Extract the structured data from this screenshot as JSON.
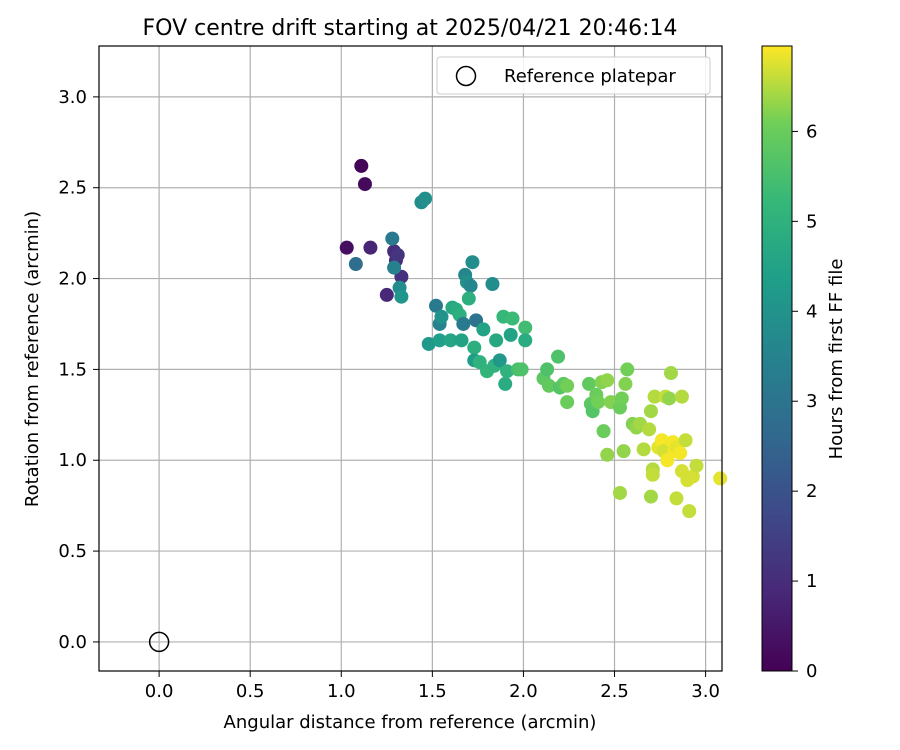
{
  "chart_data": {
    "type": "scatter",
    "title": "FOV centre drift starting at 2025/04/21 20:46:14",
    "xlabel": "Angular distance from reference (arcmin)",
    "ylabel": "Rotation from reference (arcmin)",
    "xlim": [
      -0.33,
      3.09
    ],
    "ylim": [
      -0.16,
      3.28
    ],
    "xticks": [
      "0.0",
      "0.5",
      "1.0",
      "1.5",
      "2.0",
      "2.5",
      "3.0"
    ],
    "yticks": [
      "0.0",
      "0.5",
      "1.0",
      "1.5",
      "2.0",
      "2.5",
      "3.0"
    ],
    "grid": true,
    "legend_position": "top-right",
    "colormap": "viridis",
    "colorbar": {
      "label": "Hours from first FF file",
      "range": [
        0,
        6.95
      ],
      "ticks": [
        "0",
        "1",
        "2",
        "3",
        "4",
        "5",
        "6"
      ]
    },
    "reference": {
      "label": "Reference platepar",
      "x": 0.0,
      "y": 0.0
    },
    "points": [
      [
        1.11,
        2.62,
        0.1
      ],
      [
        1.13,
        2.52,
        0.2
      ],
      [
        1.03,
        2.17,
        0.3
      ],
      [
        1.16,
        2.17,
        0.8
      ],
      [
        1.29,
        2.15,
        1.0
      ],
      [
        1.3,
        2.1,
        1.0
      ],
      [
        1.33,
        2.01,
        1.1
      ],
      [
        1.25,
        1.91,
        0.9
      ],
      [
        1.31,
        2.13,
        1.2
      ],
      [
        1.08,
        2.08,
        2.8
      ],
      [
        1.28,
        2.22,
        3.2
      ],
      [
        1.29,
        2.06,
        3.4
      ],
      [
        1.32,
        1.95,
        3.8
      ],
      [
        1.33,
        1.9,
        4.1
      ],
      [
        1.44,
        2.42,
        3.8
      ],
      [
        1.46,
        2.44,
        3.9
      ],
      [
        1.52,
        1.85,
        3.2
      ],
      [
        1.54,
        1.75,
        3.5
      ],
      [
        1.55,
        1.79,
        4.0
      ],
      [
        1.48,
        1.64,
        4.2
      ],
      [
        1.54,
        1.66,
        4.4
      ],
      [
        1.6,
        1.66,
        4.6
      ],
      [
        1.61,
        1.84,
        4.7
      ],
      [
        1.63,
        1.83,
        4.8
      ],
      [
        1.65,
        1.8,
        4.9
      ],
      [
        1.66,
        1.66,
        4.5
      ],
      [
        1.67,
        1.75,
        3.2
      ],
      [
        1.68,
        2.02,
        3.6
      ],
      [
        1.69,
        1.98,
        3.9
      ],
      [
        1.71,
        1.96,
        3.6
      ],
      [
        1.7,
        1.89,
        4.9
      ],
      [
        1.72,
        2.09,
        3.8
      ],
      [
        1.74,
        1.77,
        3.0
      ],
      [
        1.73,
        1.62,
        4.9
      ],
      [
        1.73,
        1.55,
        4.3
      ],
      [
        1.76,
        1.54,
        5.0
      ],
      [
        1.78,
        1.72,
        4.5
      ],
      [
        1.8,
        1.49,
        5.1
      ],
      [
        1.83,
        1.97,
        3.8
      ],
      [
        1.84,
        1.52,
        5.0
      ],
      [
        1.85,
        1.66,
        4.7
      ],
      [
        1.87,
        1.55,
        4.2
      ],
      [
        1.89,
        1.79,
        5.2
      ],
      [
        1.9,
        1.42,
        4.8
      ],
      [
        1.91,
        1.49,
        5.0
      ],
      [
        1.93,
        1.69,
        4.5
      ],
      [
        1.94,
        1.78,
        5.3
      ],
      [
        1.97,
        1.5,
        5.5
      ],
      [
        1.99,
        1.5,
        5.6
      ],
      [
        2.01,
        1.73,
        5.4
      ],
      [
        2.01,
        1.66,
        4.8
      ],
      [
        2.11,
        1.45,
        5.8
      ],
      [
        2.13,
        1.5,
        5.6
      ],
      [
        2.14,
        1.41,
        5.9
      ],
      [
        2.19,
        1.57,
        5.6
      ],
      [
        2.2,
        1.4,
        5.7
      ],
      [
        2.22,
        1.42,
        5.8
      ],
      [
        2.24,
        1.32,
        6.0
      ],
      [
        2.24,
        1.41,
        6.1
      ],
      [
        2.36,
        1.42,
        5.9
      ],
      [
        2.37,
        1.31,
        5.8
      ],
      [
        2.38,
        1.27,
        5.7
      ],
      [
        2.4,
        1.36,
        6.0
      ],
      [
        2.41,
        1.32,
        6.1
      ],
      [
        2.43,
        1.43,
        6.2
      ],
      [
        2.44,
        1.16,
        6.0
      ],
      [
        2.46,
        1.44,
        6.3
      ],
      [
        2.46,
        1.03,
        6.3
      ],
      [
        2.48,
        1.32,
        6.2
      ],
      [
        2.53,
        1.29,
        6.0
      ],
      [
        2.54,
        1.34,
        6.1
      ],
      [
        2.55,
        1.05,
        6.3
      ],
      [
        2.53,
        0.82,
        6.4
      ],
      [
        2.56,
        1.42,
        6.2
      ],
      [
        2.57,
        1.5,
        6.1
      ],
      [
        2.6,
        1.2,
        6.2
      ],
      [
        2.62,
        1.18,
        6.3
      ],
      [
        2.64,
        1.2,
        6.4
      ],
      [
        2.66,
        1.06,
        6.5
      ],
      [
        2.69,
        1.17,
        6.5
      ],
      [
        2.7,
        1.27,
        6.4
      ],
      [
        2.7,
        0.8,
        6.4
      ],
      [
        2.71,
        0.95,
        6.5
      ],
      [
        2.71,
        0.92,
        6.6
      ],
      [
        2.72,
        1.35,
        6.5
      ],
      [
        2.74,
        1.07,
        6.8
      ],
      [
        2.76,
        1.11,
        6.9
      ],
      [
        2.77,
        1.05,
        6.7
      ],
      [
        2.78,
        1.35,
        6.6
      ],
      [
        2.79,
        1.0,
        6.9
      ],
      [
        2.81,
        1.48,
        6.4
      ],
      [
        2.8,
        1.34,
        6.3
      ],
      [
        2.82,
        1.1,
        6.9
      ],
      [
        2.83,
        1.05,
        6.9
      ],
      [
        2.84,
        1.07,
        6.8
      ],
      [
        2.84,
        0.79,
        6.6
      ],
      [
        2.86,
        1.04,
        6.9
      ],
      [
        2.87,
        0.94,
        6.7
      ],
      [
        2.87,
        1.35,
        6.5
      ],
      [
        2.89,
        1.11,
        6.6
      ],
      [
        2.9,
        0.89,
        6.7
      ],
      [
        2.91,
        0.72,
        6.6
      ],
      [
        2.93,
        0.91,
        6.7
      ],
      [
        2.95,
        0.97,
        6.6
      ],
      [
        3.08,
        0.9,
        6.8
      ]
    ]
  }
}
